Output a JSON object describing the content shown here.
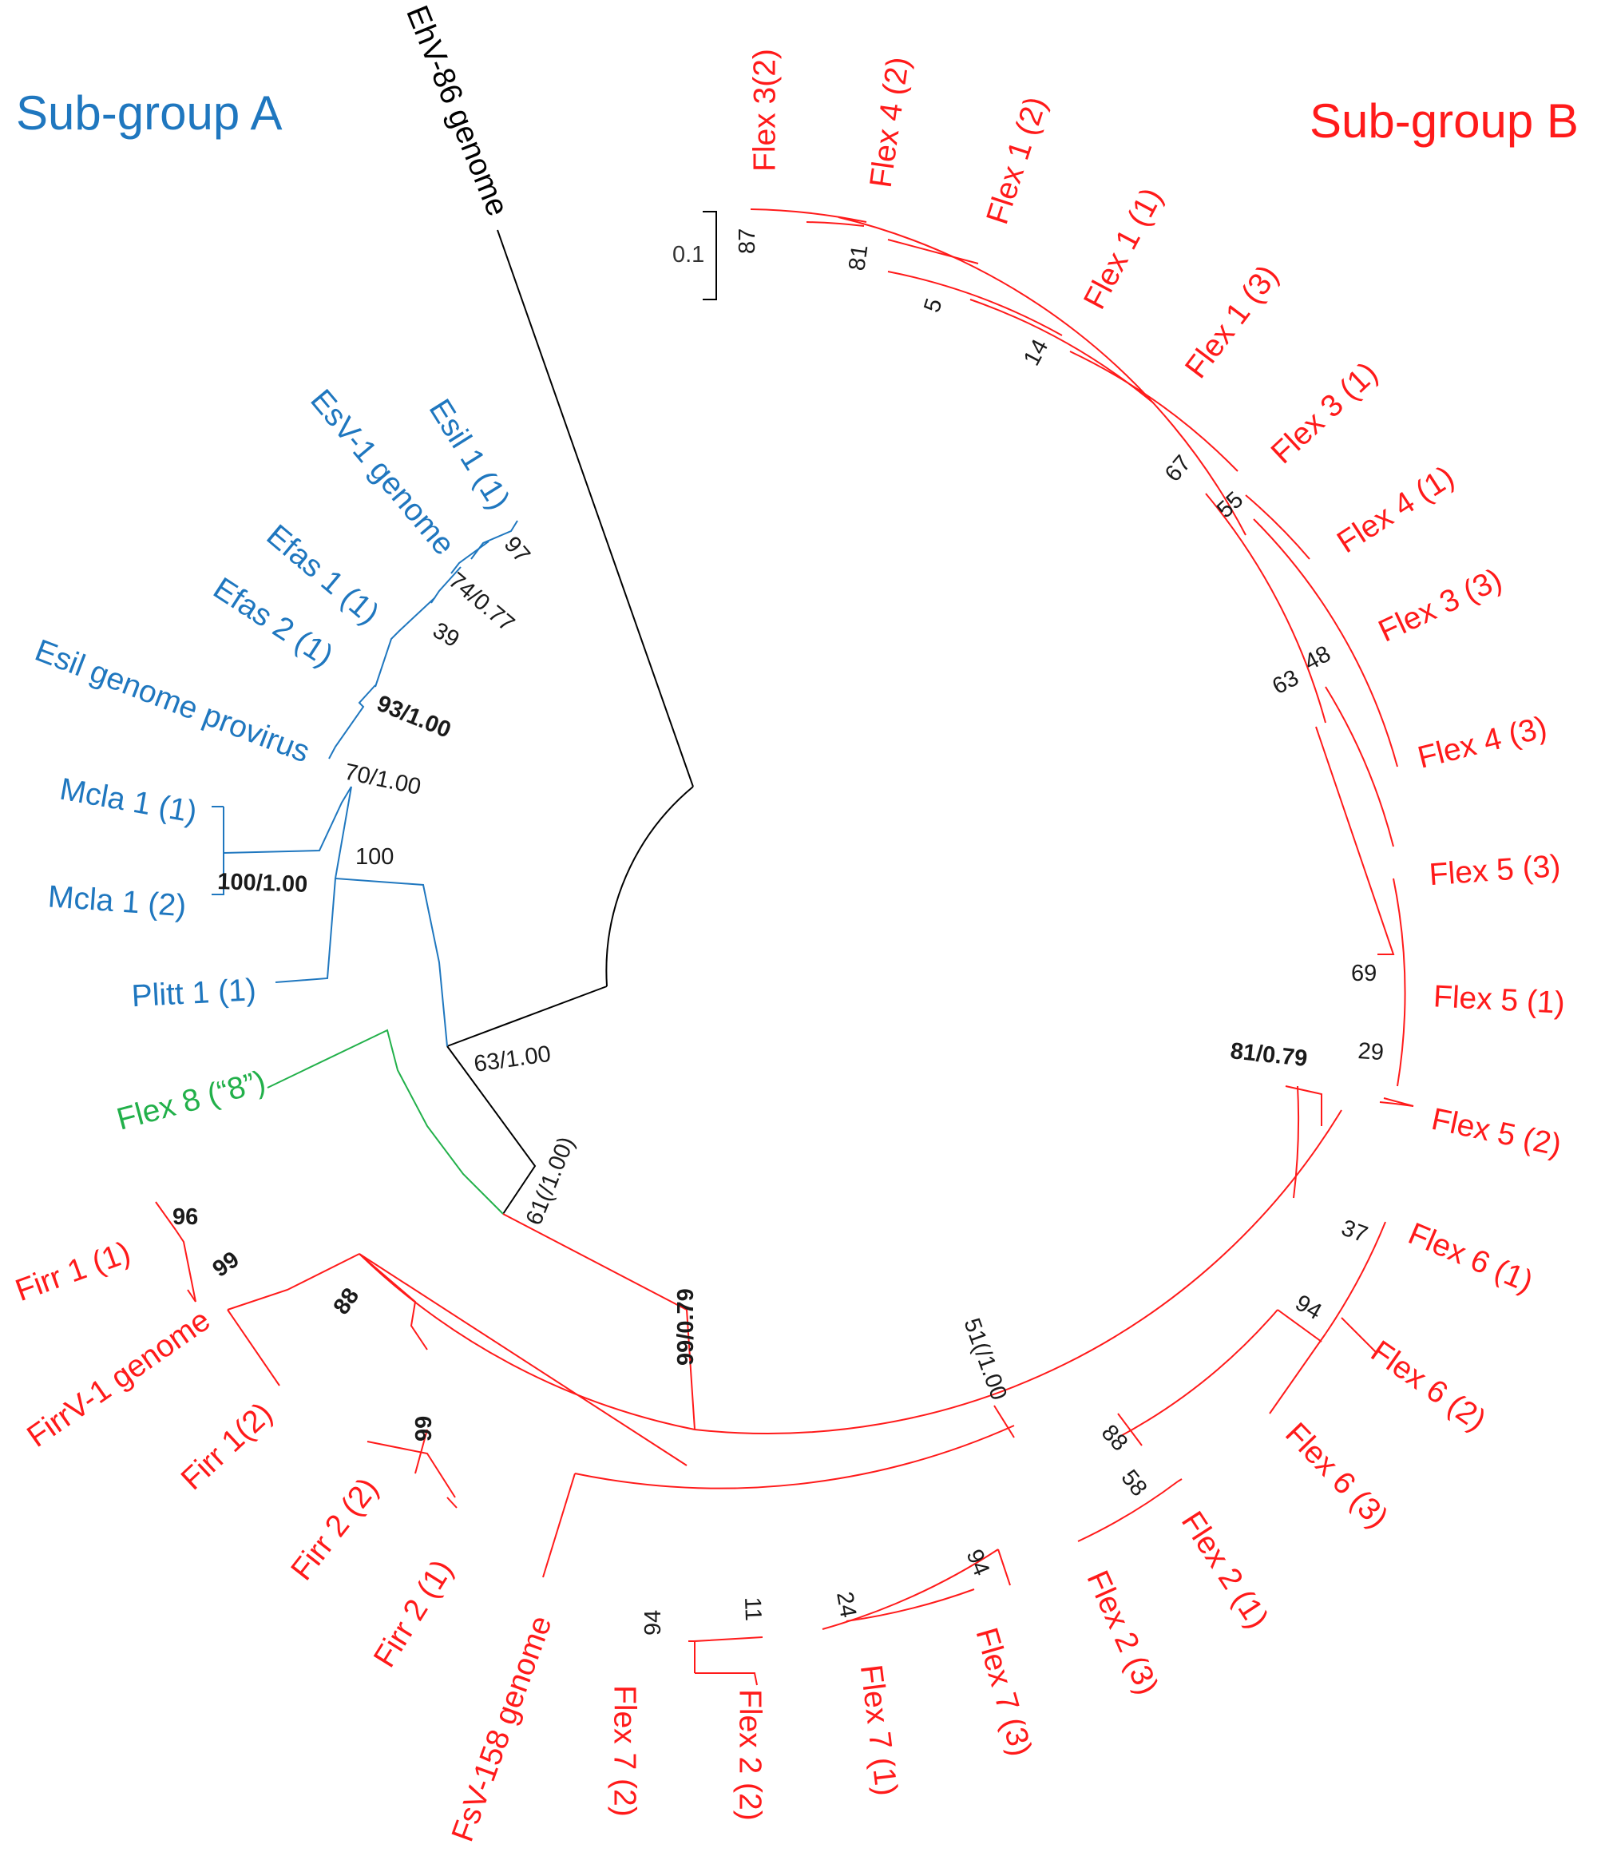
{
  "colors": {
    "group_a": "#1f77bf",
    "group_b": "#ff1a1a",
    "flex8": "#22b04a",
    "outgroup": "#000000"
  },
  "group_labels": {
    "a": "Sub-group A",
    "b": "Sub-group B"
  },
  "scale_bar": "0.1",
  "taxa": [
    {
      "id": "ehv",
      "label": "EhV-86 genome"
    },
    {
      "id": "flex3_2",
      "label": "Flex 3(2)"
    },
    {
      "id": "flex4_2",
      "label": "Flex 4 (2)"
    },
    {
      "id": "flex1_2",
      "label": "Flex 1 (2)"
    },
    {
      "id": "flex1_1",
      "label": "Flex 1 (1)"
    },
    {
      "id": "flex1_3",
      "label": "Flex 1 (3)"
    },
    {
      "id": "flex3_1",
      "label": "Flex 3 (1)"
    },
    {
      "id": "flex4_1",
      "label": "Flex 4 (1)"
    },
    {
      "id": "flex3_3",
      "label": "Flex 3 (3)"
    },
    {
      "id": "flex4_3",
      "label": "Flex 4 (3)"
    },
    {
      "id": "flex5_3",
      "label": "Flex 5 (3)"
    },
    {
      "id": "flex5_1",
      "label": "Flex 5 (1)"
    },
    {
      "id": "flex5_2",
      "label": "Flex 5 (2)"
    },
    {
      "id": "flex6_1",
      "label": "Flex 6 (1)"
    },
    {
      "id": "flex6_2",
      "label": "Flex 6 (2)"
    },
    {
      "id": "flex6_3",
      "label": "Flex 6 (3)"
    },
    {
      "id": "flex2_1",
      "label": "Flex 2 (1)"
    },
    {
      "id": "flex2_3",
      "label": "Flex 2 (3)"
    },
    {
      "id": "flex7_3",
      "label": "Flex 7 (3)"
    },
    {
      "id": "flex7_1",
      "label": "Flex 7 (1)"
    },
    {
      "id": "flex2_2",
      "label": "Flex 2 (2)"
    },
    {
      "id": "flex7_2",
      "label": "Flex 7 (2)"
    },
    {
      "id": "fsv",
      "label": "FsV-158 genome"
    },
    {
      "id": "firr2_1",
      "label": "Firr 2 (1)"
    },
    {
      "id": "firr2_2",
      "label": "Firr 2 (2)"
    },
    {
      "id": "firr1_2",
      "label": "Firr 1(2)"
    },
    {
      "id": "firrv",
      "label": "FirrV-1 genome"
    },
    {
      "id": "firr1_1",
      "label": "Firr 1 (1)"
    },
    {
      "id": "flex8",
      "label": "Flex 8 (“8”)"
    },
    {
      "id": "plitt",
      "label": "Plitt 1 (1)"
    },
    {
      "id": "mcla1_2",
      "label": "Mcla 1 (2)"
    },
    {
      "id": "mcla1_1",
      "label": "Mcla 1 (1)"
    },
    {
      "id": "esilprov",
      "label": "Esil genome provirus"
    },
    {
      "id": "efas2",
      "label": "Efas 2 (1)"
    },
    {
      "id": "efas1",
      "label": "Efas 1 (1)"
    },
    {
      "id": "esv",
      "label": "EsV-1 genome"
    },
    {
      "id": "esil1",
      "label": "Esil 1 (1)"
    }
  ],
  "supports": [
    {
      "id": "s87",
      "text": "87",
      "bold": false
    },
    {
      "id": "s81",
      "text": "81",
      "bold": false
    },
    {
      "id": "s5",
      "text": "5",
      "bold": false
    },
    {
      "id": "s14",
      "text": "14",
      "bold": false
    },
    {
      "id": "s67",
      "text": "67",
      "bold": false
    },
    {
      "id": "s55",
      "text": "55",
      "bold": false
    },
    {
      "id": "s48",
      "text": "48",
      "bold": false
    },
    {
      "id": "s63b",
      "text": "63",
      "bold": false
    },
    {
      "id": "s69",
      "text": "69",
      "bold": false
    },
    {
      "id": "s29",
      "text": "29",
      "bold": false
    },
    {
      "id": "s81079",
      "text": "81/0.79",
      "bold": true
    },
    {
      "id": "s37",
      "text": "37",
      "bold": false
    },
    {
      "id": "s94a",
      "text": "94",
      "bold": false
    },
    {
      "id": "s88b",
      "text": "88",
      "bold": false
    },
    {
      "id": "s58",
      "text": "58",
      "bold": false
    },
    {
      "id": "s94b",
      "text": "94",
      "bold": false
    },
    {
      "id": "s24",
      "text": "24",
      "bold": false
    },
    {
      "id": "s11",
      "text": "11",
      "bold": false
    },
    {
      "id": "s94c",
      "text": "94",
      "bold": false
    },
    {
      "id": "s51",
      "text": "51(/1.00",
      "bold": false
    },
    {
      "id": "s99079",
      "text": "99/0.79",
      "bold": true
    },
    {
      "id": "s88a",
      "text": "88",
      "bold": true
    },
    {
      "id": "s99a",
      "text": "99",
      "bold": true
    },
    {
      "id": "s99b",
      "text": "99",
      "bold": true
    },
    {
      "id": "s96",
      "text": "96",
      "bold": true
    },
    {
      "id": "s61",
      "text": "61(/1.00)",
      "bold": false
    },
    {
      "id": "s63a",
      "text": "63/1.00",
      "bold": false
    },
    {
      "id": "s100",
      "text": "100",
      "bold": false
    },
    {
      "id": "s100100",
      "text": "100/1.00",
      "bold": true
    },
    {
      "id": "s70",
      "text": "70/1.00",
      "bold": false
    },
    {
      "id": "s93",
      "text": "93/1.00",
      "bold": true
    },
    {
      "id": "s39",
      "text": "39",
      "bold": false
    },
    {
      "id": "s74",
      "text": "74/0.77",
      "bold": false
    },
    {
      "id": "s97",
      "text": "97",
      "bold": false
    }
  ]
}
